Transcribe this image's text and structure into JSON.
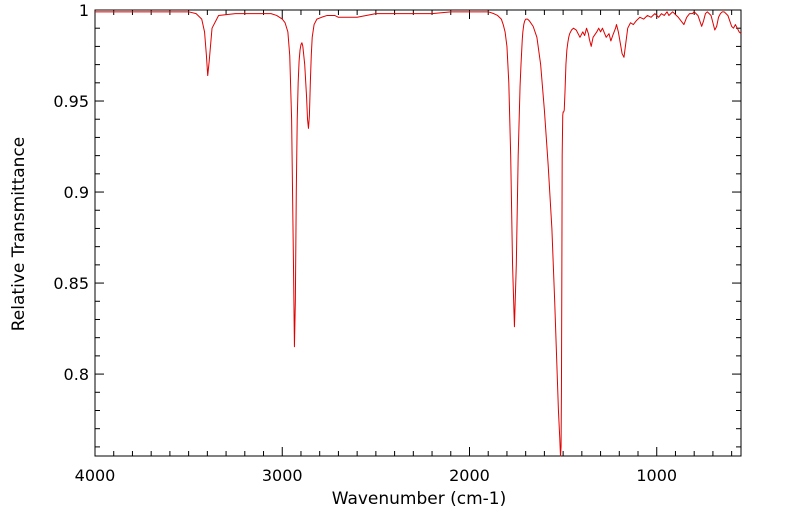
{
  "chart_data": {
    "type": "line",
    "title": "",
    "xlabel": "Wavenumber (cm-1)",
    "ylabel": "Relative Transmittance",
    "xlim": [
      4000,
      550
    ],
    "x_reversed": true,
    "ylim": [
      0.755,
      1.0
    ],
    "x_ticks": [
      4000,
      3000,
      2000,
      1000
    ],
    "x_tick_labels": [
      "4000",
      "3000",
      "2000",
      "1000"
    ],
    "y_ticks": [
      1.0,
      0.95,
      0.9,
      0.85,
      0.8
    ],
    "y_tick_labels": [
      "1",
      "0.95",
      "0.9",
      "0.85",
      "0.8"
    ],
    "grid": false,
    "legend": "none",
    "series": [
      {
        "color": "#e00000",
        "x": [
          4000,
          3800,
          3600,
          3500,
          3460,
          3430,
          3415,
          3405,
          3398,
          3390,
          3375,
          3340,
          3250,
          3150,
          3100,
          3060,
          3030,
          3000,
          2985,
          2970,
          2960,
          2950,
          2940,
          2935,
          2930,
          2925,
          2920,
          2915,
          2910,
          2905,
          2900,
          2895,
          2890,
          2880,
          2870,
          2865,
          2860,
          2855,
          2850,
          2845,
          2840,
          2830,
          2815,
          2790,
          2760,
          2720,
          2700,
          2650,
          2600,
          2500,
          2400,
          2300,
          2200,
          2100,
          2000,
          1950,
          1900,
          1870,
          1850,
          1830,
          1820,
          1810,
          1800,
          1790,
          1780,
          1770,
          1760,
          1750,
          1740,
          1730,
          1725,
          1722,
          1720,
          1718,
          1715,
          1710,
          1705,
          1700,
          1690,
          1680,
          1660,
          1640,
          1620,
          1600,
          1580,
          1560,
          1545,
          1535,
          1525,
          1518,
          1514,
          1511,
          1509,
          1507,
          1505,
          1502,
          1500,
          1497,
          1494,
          1490,
          1485,
          1480,
          1475,
          1470,
          1465,
          1460,
          1455,
          1445,
          1430,
          1410,
          1395,
          1385,
          1375,
          1365,
          1360,
          1350,
          1340,
          1320,
          1310,
          1300,
          1290,
          1270,
          1255,
          1245,
          1235,
          1220,
          1215,
          1205,
          1195,
          1185,
          1175,
          1165,
          1155,
          1140,
          1125,
          1110,
          1090,
          1070,
          1050,
          1030,
          1010,
          990,
          975,
          960,
          945,
          935,
          925,
          915,
          905,
          895,
          885,
          870,
          855,
          840,
          825,
          810,
          800,
          790,
          780,
          770,
          760,
          750,
          740,
          730,
          720,
          710,
          700,
          690,
          680,
          670,
          660,
          650,
          640,
          630,
          620,
          610,
          600,
          590,
          580,
          570,
          560,
          550
        ],
        "y": [
          0.999,
          0.999,
          0.999,
          0.999,
          0.998,
          0.995,
          0.988,
          0.975,
          0.964,
          0.972,
          0.99,
          0.997,
          0.998,
          0.998,
          0.998,
          0.998,
          0.997,
          0.995,
          0.993,
          0.988,
          0.975,
          0.94,
          0.86,
          0.815,
          0.84,
          0.9,
          0.94,
          0.96,
          0.972,
          0.978,
          0.981,
          0.982,
          0.98,
          0.97,
          0.952,
          0.94,
          0.935,
          0.942,
          0.96,
          0.975,
          0.985,
          0.992,
          0.995,
          0.996,
          0.997,
          0.997,
          0.996,
          0.996,
          0.996,
          0.998,
          0.998,
          0.998,
          0.998,
          0.999,
          0.999,
          0.999,
          0.999,
          0.998,
          0.997,
          0.995,
          0.992,
          0.988,
          0.98,
          0.96,
          0.92,
          0.86,
          0.826,
          0.86,
          0.92,
          0.958,
          0.97,
          0.976,
          0.98,
          0.984,
          0.988,
          0.992,
          0.994,
          0.995,
          0.995,
          0.994,
          0.991,
          0.985,
          0.97,
          0.945,
          0.915,
          0.88,
          0.84,
          0.81,
          0.78,
          0.765,
          0.755,
          0.76,
          0.79,
          0.85,
          0.92,
          0.942,
          0.944,
          0.944,
          0.945,
          0.955,
          0.97,
          0.978,
          0.982,
          0.985,
          0.987,
          0.988,
          0.989,
          0.99,
          0.989,
          0.985,
          0.988,
          0.986,
          0.99,
          0.987,
          0.984,
          0.98,
          0.985,
          0.988,
          0.99,
          0.988,
          0.99,
          0.985,
          0.987,
          0.983,
          0.986,
          0.99,
          0.992,
          0.988,
          0.982,
          0.976,
          0.974,
          0.982,
          0.99,
          0.993,
          0.992,
          0.994,
          0.996,
          0.995,
          0.997,
          0.996,
          0.998,
          0.996,
          0.998,
          0.997,
          0.999,
          0.997,
          0.998,
          0.999,
          0.998,
          0.997,
          0.996,
          0.994,
          0.992,
          0.996,
          0.998,
          0.998,
          0.999,
          0.998,
          0.997,
          0.994,
          0.991,
          0.994,
          0.998,
          0.999,
          0.998,
          0.997,
          0.993,
          0.989,
          0.991,
          0.996,
          0.998,
          0.999,
          0.999,
          0.998,
          0.997,
          0.994,
          0.991,
          0.99,
          0.992,
          0.99,
          0.988,
          0.987
        ]
      }
    ]
  }
}
